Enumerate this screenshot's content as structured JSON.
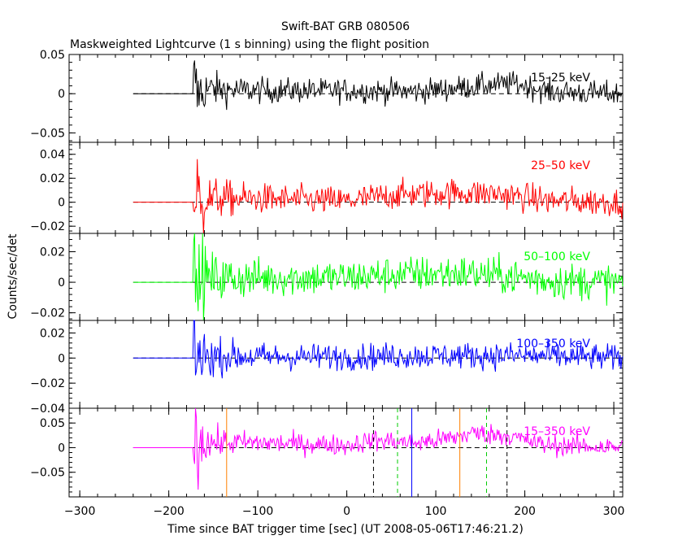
{
  "title": "Swift-BAT GRB 080506",
  "subtitle": "Maskweighted Lightcurve (1 s binning) using the flight position",
  "chart_data": {
    "type": "line",
    "title": "Swift-BAT GRB 080506",
    "subtitle": "Maskweighted Lightcurve (1 s binning) using the flight position",
    "xlabel": "Time since BAT trigger time [sec] (UT 2008-05-06T17:46:21.2)",
    "ylabel": "Counts/sec/det",
    "xlim": [
      -312,
      310
    ],
    "x_ticks": [
      -300,
      -200,
      -100,
      0,
      100,
      200,
      300
    ],
    "x_tick_labels": [
      "−300",
      "−200",
      "−100",
      "0",
      "100",
      "200",
      "300"
    ],
    "binning_s": 1,
    "data_start": -240,
    "burst_onset": -172,
    "panels": [
      {
        "name": "15–25 keV",
        "color": "#000000",
        "ylim": [
          -0.062,
          0.05
        ],
        "yticks": [
          0.05,
          0,
          -0.05
        ],
        "ytick_labels": [
          "0.05",
          "0",
          "−0.05"
        ],
        "noise": 0.011,
        "spike": 0.038,
        "profile": [
          [
            -170,
            0.006
          ],
          [
            -100,
            0.004
          ],
          [
            0,
            0.004
          ],
          [
            80,
            0.003
          ],
          [
            150,
            0.01
          ],
          [
            190,
            0.013
          ],
          [
            230,
            0.002
          ],
          [
            310,
            0.0
          ]
        ]
      },
      {
        "name": "25–50 keV",
        "color": "#ff0000",
        "ylim": [
          -0.026,
          0.05
        ],
        "yticks": [
          0.04,
          0.02,
          0,
          -0.02
        ],
        "ytick_labels": [
          "0.04",
          "0.02",
          "0",
          "−0.02"
        ],
        "noise": 0.0085,
        "spike": 0.03,
        "profile": [
          [
            -170,
            0.003
          ],
          [
            -100,
            0.003
          ],
          [
            0,
            0.001
          ],
          [
            50,
            0.006
          ],
          [
            120,
            0.008
          ],
          [
            170,
            0.007
          ],
          [
            230,
            0.001
          ],
          [
            310,
            0.0
          ]
        ]
      },
      {
        "name": "50–100 keV",
        "color": "#00ff00",
        "ylim": [
          -0.025,
          0.032
        ],
        "yticks": [
          0.02,
          0,
          -0.02
        ],
        "ytick_labels": [
          "0.02",
          "0",
          "−0.02"
        ],
        "noise": 0.0085,
        "spike": 0.026,
        "profile": [
          [
            -170,
            0.002
          ],
          [
            -100,
            0.003
          ],
          [
            0,
            0.003
          ],
          [
            50,
            0.005
          ],
          [
            130,
            0.006
          ],
          [
            180,
            0.004
          ],
          [
            230,
            0.001
          ],
          [
            310,
            0.0
          ]
        ]
      },
      {
        "name": "100–350 keV",
        "color": "#0000ff",
        "ylim": [
          -0.04,
          0.03
        ],
        "yticks": [
          0.02,
          0,
          -0.02,
          -0.04
        ],
        "ytick_labels": [
          "0.02",
          "0",
          "−0.02",
          "−0.04"
        ],
        "noise": 0.0075,
        "spike": 0.03,
        "profile": [
          [
            -170,
            0.002
          ],
          [
            -100,
            0.001
          ],
          [
            0,
            0.001
          ],
          [
            100,
            0.002
          ],
          [
            200,
            0.002
          ],
          [
            310,
            0.0
          ]
        ]
      },
      {
        "name": "15–350 keV",
        "color": "#ff00ff",
        "ylim": [
          -0.1,
          0.08
        ],
        "yticks": [
          0.05,
          0,
          -0.05
        ],
        "ytick_labels": [
          "0.05",
          "0",
          "−0.05"
        ],
        "noise": 0.015,
        "spike": 0.07,
        "profile": [
          [
            -170,
            0.01
          ],
          [
            -100,
            0.01
          ],
          [
            0,
            0.005
          ],
          [
            30,
            0.015
          ],
          [
            80,
            0.01
          ],
          [
            120,
            0.02
          ],
          [
            140,
            0.03
          ],
          [
            180,
            0.025
          ],
          [
            220,
            0.006
          ],
          [
            310,
            0.0
          ]
        ]
      }
    ],
    "markers": [
      {
        "x": -135,
        "style": "solid",
        "color": "#ff8000"
      },
      {
        "x": 30,
        "style": "dashed",
        "color": "#000000"
      },
      {
        "x": 57,
        "style": "dashed",
        "color": "#00cc00"
      },
      {
        "x": 73,
        "style": "solid",
        "color": "#0000ff"
      },
      {
        "x": 127,
        "style": "solid",
        "color": "#ff8000"
      },
      {
        "x": 157,
        "style": "dashed",
        "color": "#00cc00"
      },
      {
        "x": 180,
        "style": "dashed",
        "color": "#000000"
      }
    ]
  }
}
